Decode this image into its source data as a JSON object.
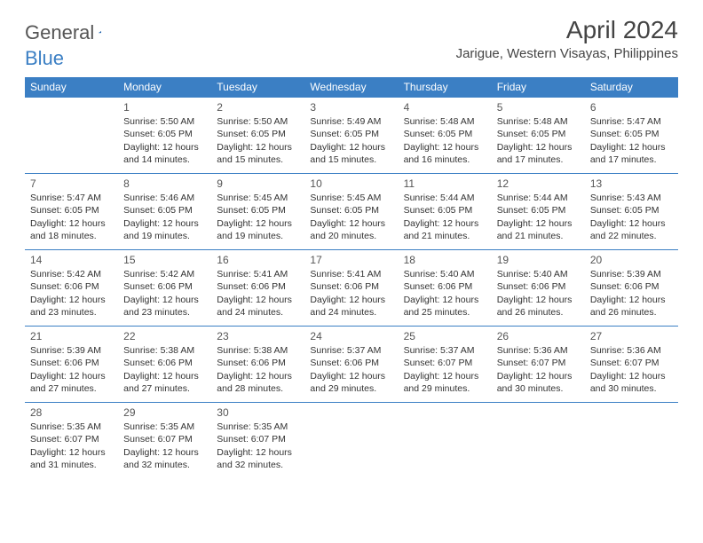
{
  "logo": {
    "part1": "General",
    "part2": "Blue"
  },
  "title": "April 2024",
  "location": "Jarigue, Western Visayas, Philippines",
  "colors": {
    "header_bg": "#3b7fc4",
    "header_fg": "#ffffff",
    "border": "#3b7fc4",
    "text": "#333333",
    "title_color": "#444444"
  },
  "weekdays": [
    "Sunday",
    "Monday",
    "Tuesday",
    "Wednesday",
    "Thursday",
    "Friday",
    "Saturday"
  ],
  "weeks": [
    [
      null,
      {
        "day": 1,
        "sunrise": "5:50 AM",
        "sunset": "6:05 PM",
        "daylight": "12 hours and 14 minutes."
      },
      {
        "day": 2,
        "sunrise": "5:50 AM",
        "sunset": "6:05 PM",
        "daylight": "12 hours and 15 minutes."
      },
      {
        "day": 3,
        "sunrise": "5:49 AM",
        "sunset": "6:05 PM",
        "daylight": "12 hours and 15 minutes."
      },
      {
        "day": 4,
        "sunrise": "5:48 AM",
        "sunset": "6:05 PM",
        "daylight": "12 hours and 16 minutes."
      },
      {
        "day": 5,
        "sunrise": "5:48 AM",
        "sunset": "6:05 PM",
        "daylight": "12 hours and 17 minutes."
      },
      {
        "day": 6,
        "sunrise": "5:47 AM",
        "sunset": "6:05 PM",
        "daylight": "12 hours and 17 minutes."
      }
    ],
    [
      {
        "day": 7,
        "sunrise": "5:47 AM",
        "sunset": "6:05 PM",
        "daylight": "12 hours and 18 minutes."
      },
      {
        "day": 8,
        "sunrise": "5:46 AM",
        "sunset": "6:05 PM",
        "daylight": "12 hours and 19 minutes."
      },
      {
        "day": 9,
        "sunrise": "5:45 AM",
        "sunset": "6:05 PM",
        "daylight": "12 hours and 19 minutes."
      },
      {
        "day": 10,
        "sunrise": "5:45 AM",
        "sunset": "6:05 PM",
        "daylight": "12 hours and 20 minutes."
      },
      {
        "day": 11,
        "sunrise": "5:44 AM",
        "sunset": "6:05 PM",
        "daylight": "12 hours and 21 minutes."
      },
      {
        "day": 12,
        "sunrise": "5:44 AM",
        "sunset": "6:05 PM",
        "daylight": "12 hours and 21 minutes."
      },
      {
        "day": 13,
        "sunrise": "5:43 AM",
        "sunset": "6:05 PM",
        "daylight": "12 hours and 22 minutes."
      }
    ],
    [
      {
        "day": 14,
        "sunrise": "5:42 AM",
        "sunset": "6:06 PM",
        "daylight": "12 hours and 23 minutes."
      },
      {
        "day": 15,
        "sunrise": "5:42 AM",
        "sunset": "6:06 PM",
        "daylight": "12 hours and 23 minutes."
      },
      {
        "day": 16,
        "sunrise": "5:41 AM",
        "sunset": "6:06 PM",
        "daylight": "12 hours and 24 minutes."
      },
      {
        "day": 17,
        "sunrise": "5:41 AM",
        "sunset": "6:06 PM",
        "daylight": "12 hours and 24 minutes."
      },
      {
        "day": 18,
        "sunrise": "5:40 AM",
        "sunset": "6:06 PM",
        "daylight": "12 hours and 25 minutes."
      },
      {
        "day": 19,
        "sunrise": "5:40 AM",
        "sunset": "6:06 PM",
        "daylight": "12 hours and 26 minutes."
      },
      {
        "day": 20,
        "sunrise": "5:39 AM",
        "sunset": "6:06 PM",
        "daylight": "12 hours and 26 minutes."
      }
    ],
    [
      {
        "day": 21,
        "sunrise": "5:39 AM",
        "sunset": "6:06 PM",
        "daylight": "12 hours and 27 minutes."
      },
      {
        "day": 22,
        "sunrise": "5:38 AM",
        "sunset": "6:06 PM",
        "daylight": "12 hours and 27 minutes."
      },
      {
        "day": 23,
        "sunrise": "5:38 AM",
        "sunset": "6:06 PM",
        "daylight": "12 hours and 28 minutes."
      },
      {
        "day": 24,
        "sunrise": "5:37 AM",
        "sunset": "6:06 PM",
        "daylight": "12 hours and 29 minutes."
      },
      {
        "day": 25,
        "sunrise": "5:37 AM",
        "sunset": "6:07 PM",
        "daylight": "12 hours and 29 minutes."
      },
      {
        "day": 26,
        "sunrise": "5:36 AM",
        "sunset": "6:07 PM",
        "daylight": "12 hours and 30 minutes."
      },
      {
        "day": 27,
        "sunrise": "5:36 AM",
        "sunset": "6:07 PM",
        "daylight": "12 hours and 30 minutes."
      }
    ],
    [
      {
        "day": 28,
        "sunrise": "5:35 AM",
        "sunset": "6:07 PM",
        "daylight": "12 hours and 31 minutes."
      },
      {
        "day": 29,
        "sunrise": "5:35 AM",
        "sunset": "6:07 PM",
        "daylight": "12 hours and 32 minutes."
      },
      {
        "day": 30,
        "sunrise": "5:35 AM",
        "sunset": "6:07 PM",
        "daylight": "12 hours and 32 minutes."
      },
      null,
      null,
      null,
      null
    ]
  ],
  "labels": {
    "sunrise": "Sunrise: ",
    "sunset": "Sunset: ",
    "daylight": "Daylight: "
  }
}
